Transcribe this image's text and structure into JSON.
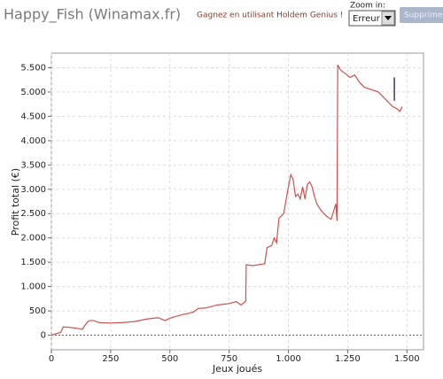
{
  "header": {
    "title": "Happy_Fish (Winamax.fr)",
    "ad": "Gagnez en utilisant Holdem Genius !"
  },
  "zoom": {
    "label": "Zoom in:",
    "select": "Erreur",
    "button": "Supprimer"
  },
  "chart_data": {
    "type": "line",
    "x_label": "Jeux joués",
    "y_label": "Profit total (€)",
    "xlim": [
      0,
      1570
    ],
    "ylim": [
      -300,
      5800
    ],
    "xticks": [
      0,
      250,
      500,
      750,
      {
        "value": 1000,
        "label": "1.000"
      },
      {
        "value": 1250,
        "label": "1.250"
      },
      {
        "value": 1500,
        "label": "1.500"
      }
    ],
    "yticks": [
      0,
      500,
      {
        "value": 1000,
        "label": "1.000"
      },
      {
        "value": 1500,
        "label": "1.500"
      },
      {
        "value": 2000,
        "label": "2.000"
      },
      {
        "value": 2500,
        "label": "2.500"
      },
      {
        "value": 3000,
        "label": "3.000"
      },
      {
        "value": 3500,
        "label": "3.500"
      },
      {
        "value": 4000,
        "label": "4.000"
      },
      {
        "value": 4500,
        "label": "4.500"
      },
      {
        "value": 5000,
        "label": "5.000"
      },
      {
        "value": 5500,
        "label": "5.500"
      }
    ],
    "grid": true,
    "x": [
      0,
      20,
      40,
      50,
      80,
      110,
      130,
      150,
      160,
      180,
      200,
      250,
      300,
      350,
      400,
      450,
      480,
      500,
      550,
      580,
      600,
      620,
      650,
      700,
      750,
      780,
      800,
      820,
      822,
      850,
      900,
      910,
      930,
      940,
      950,
      960,
      980,
      1000,
      1010,
      1020,
      1030,
      1040,
      1050,
      1060,
      1070,
      1080,
      1090,
      1100,
      1110,
      1120,
      1140,
      1160,
      1180,
      1200,
      1205,
      1208,
      1220,
      1240,
      1260,
      1280,
      1300,
      1320,
      1350,
      1380,
      1400,
      1420,
      1440,
      1460,
      1470,
      1480
    ],
    "series": [
      {
        "color": "#d05050",
        "values": [
          0,
          30,
          60,
          170,
          160,
          140,
          120,
          260,
          300,
          300,
          260,
          250,
          260,
          280,
          330,
          360,
          300,
          350,
          420,
          450,
          480,
          550,
          560,
          620,
          650,
          690,
          620,
          700,
          1450,
          1430,
          1470,
          1800,
          1850,
          2000,
          1900,
          2400,
          2500,
          3050,
          3300,
          3200,
          2850,
          2900,
          2800,
          3050,
          2800,
          3100,
          3150,
          3050,
          2850,
          2700,
          2550,
          2450,
          2380,
          2700,
          2350,
          5560,
          5450,
          5380,
          5300,
          5350,
          5200,
          5100,
          5050,
          5000,
          4900,
          4800,
          4700,
          4650,
          4600,
          4700
        ]
      }
    ],
    "range_bar": {
      "x": 1447,
      "values": [
        4820,
        5300
      ],
      "color": "#4b2c7a"
    }
  }
}
